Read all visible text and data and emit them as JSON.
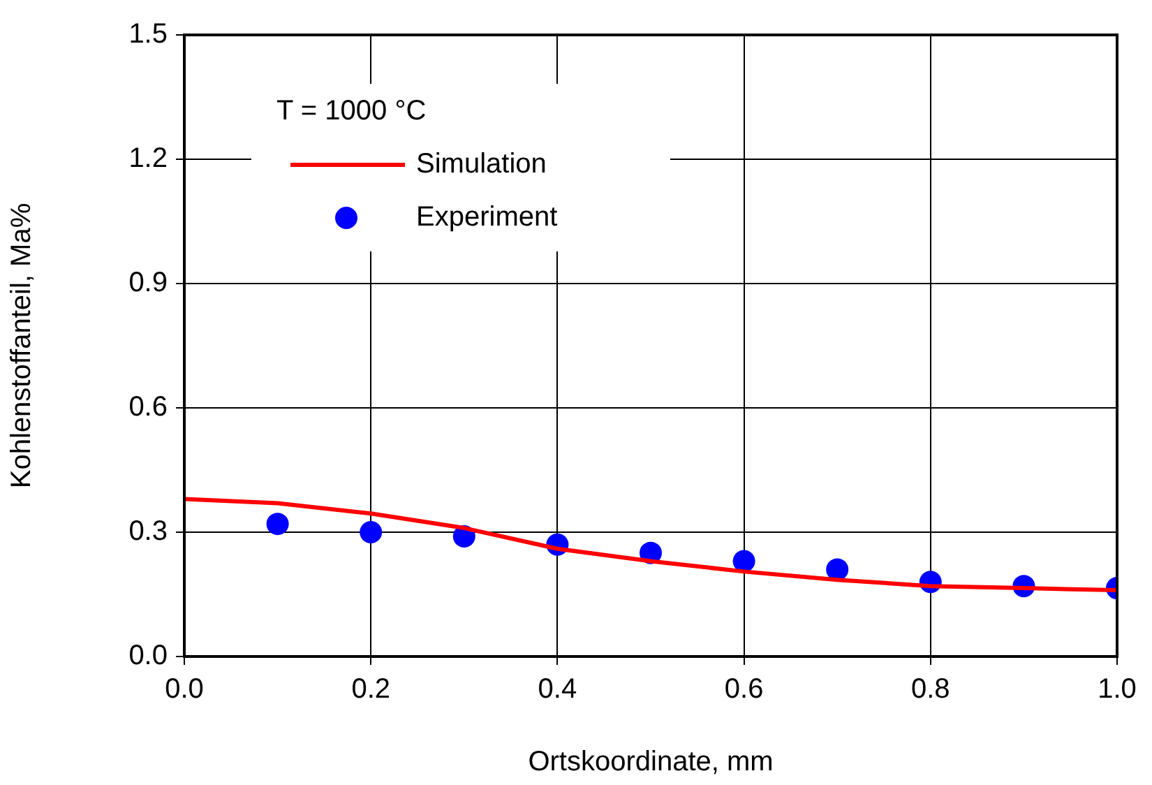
{
  "chart_data": {
    "type": "line",
    "xlabel": "Ortskoordinate, mm",
    "ylabel": "Kohlenstoffanteil, Ma%",
    "legend_title": "T = 1000 °C",
    "legend": "top left",
    "grid": true,
    "xlim": [
      0,
      1
    ],
    "xticks": [
      {
        "value": 0,
        "label": "0.0"
      },
      0.2,
      0.4,
      0.6,
      0.8,
      {
        "value": 1,
        "label": "1.0"
      }
    ],
    "ylim": [
      0,
      1.5
    ],
    "yticks": [
      {
        "value": 0,
        "label": "0.0"
      },
      0.3,
      0.6,
      0.9,
      1.2,
      1.5
    ],
    "series": [
      {
        "name": "Simulation",
        "color": "#ff0000",
        "marker": "none",
        "line_style": "solid",
        "x": [
          0,
          0.1,
          0.2,
          0.3,
          0.4,
          0.5,
          0.6,
          0.7,
          0.8,
          0.9,
          1.0
        ],
        "values": [
          0.38,
          0.37,
          0.345,
          0.31,
          0.26,
          0.23,
          0.205,
          0.185,
          0.17,
          0.165,
          0.16
        ]
      },
      {
        "name": "Experiment",
        "type": "scatter",
        "color": "#0000ff",
        "marker": "circle",
        "x": [
          0.1,
          0.2,
          0.3,
          0.4,
          0.5,
          0.6,
          0.7,
          0.8,
          0.9,
          1.0
        ],
        "values": [
          0.32,
          0.3,
          0.29,
          0.27,
          0.25,
          0.23,
          0.21,
          0.18,
          0.17,
          0.165
        ]
      }
    ]
  }
}
